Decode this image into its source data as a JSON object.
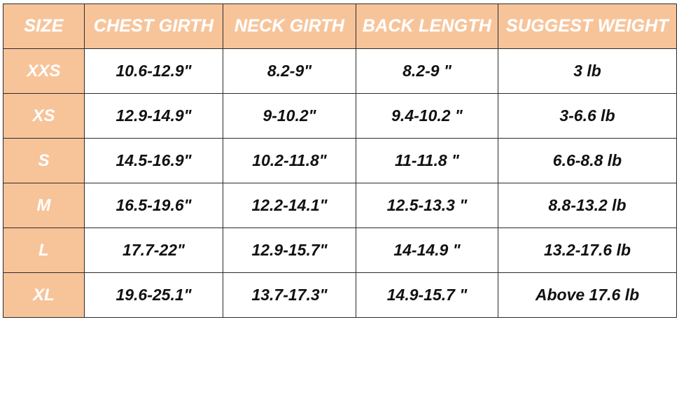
{
  "headers": [
    "SIZE",
    "CHEST GIRTH",
    "NECK GIRTH",
    "BACK LENGTH",
    "SUGGEST WEIGHT"
  ],
  "rows": [
    {
      "size": "XXS",
      "chest": "10.6-12.9\"",
      "neck": "8.2-9\"",
      "back": "8.2-9 \"",
      "weight": "3 lb"
    },
    {
      "size": "XS",
      "chest": "12.9-14.9\"",
      "neck": "9-10.2\"",
      "back": "9.4-10.2 \"",
      "weight": "3-6.6 lb"
    },
    {
      "size": "S",
      "chest": "14.5-16.9\"",
      "neck": "10.2-11.8\"",
      "back": "11-11.8 \"",
      "weight": "6.6-8.8 lb"
    },
    {
      "size": "M",
      "chest": "16.5-19.6\"",
      "neck": "12.2-14.1\"",
      "back": "12.5-13.3 \"",
      "weight": "8.8-13.2 lb"
    },
    {
      "size": "L",
      "chest": "17.7-22\"",
      "neck": "12.9-15.7\"",
      "back": "14-14.9 \"",
      "weight": "13.2-17.6 lb"
    },
    {
      "size": "XL",
      "chest": "19.6-25.1\"",
      "neck": "13.7-17.3\"",
      "back": "14.9-15.7 \"",
      "weight": "Above 17.6 lb"
    }
  ],
  "colors": {
    "header_background": "#f7c49a",
    "header_text": "#ffffff",
    "body_text": "#111111",
    "grid_line": "#2b2b2b"
  }
}
